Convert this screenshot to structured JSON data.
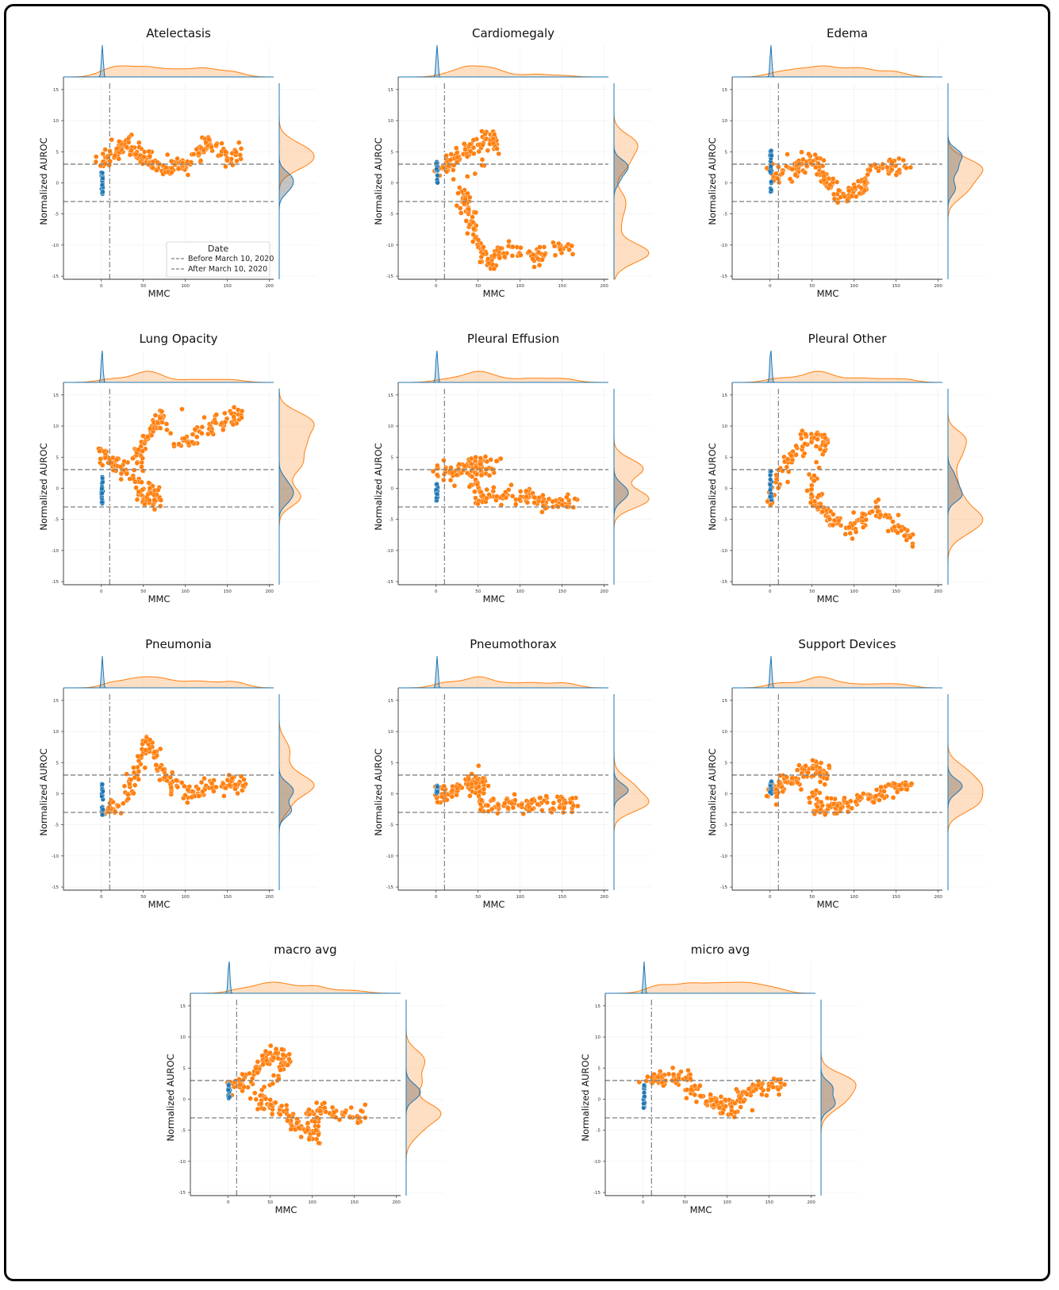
{
  "legend": {
    "title": "Date",
    "entries": [
      "Before March 10, 2020",
      "After March 10, 2020"
    ]
  },
  "colors": {
    "before": "#1f77b4",
    "after": "#ff7f0e",
    "threshold": "#808080"
  },
  "chart_data": [
    {
      "type": "scatter",
      "title": "Atelectasis",
      "xlabel": "MMC",
      "ylabel": "Normalized AUROC",
      "xlim": [
        -45,
        205
      ],
      "ylim": [
        -15.5,
        16
      ],
      "x_ticks": [
        0,
        50,
        100,
        150,
        200
      ],
      "y_ticks": [
        15,
        10,
        5,
        0,
        -5,
        -10,
        -15
      ],
      "hlines": [
        3,
        -3
      ],
      "vline": 10,
      "legend": "lower-right",
      "before": {
        "x": [
          0,
          2
        ],
        "y": [
          -1.8,
          1.8
        ]
      },
      "after": [
        [
          2,
          3.5
        ],
        [
          10,
          4
        ],
        [
          20,
          5
        ],
        [
          30,
          6.5
        ],
        [
          40,
          5
        ],
        [
          50,
          4
        ],
        [
          60,
          3
        ],
        [
          75,
          2
        ],
        [
          90,
          3
        ],
        [
          105,
          3
        ],
        [
          120,
          5
        ],
        [
          130,
          6.5
        ],
        [
          150,
          4.5
        ],
        [
          165,
          4.5
        ]
      ]
    },
    {
      "type": "scatter",
      "title": "Cardiomegaly",
      "xlabel": "MMC",
      "ylabel": "Normalized AUROC",
      "xlim": [
        -45,
        205
      ],
      "ylim": [
        -15.5,
        16
      ],
      "x_ticks": [
        0,
        50,
        100,
        150,
        200
      ],
      "y_ticks": [
        15,
        10,
        5,
        0,
        -5,
        -10,
        -15
      ],
      "hlines": [
        3,
        -3
      ],
      "vline": 10,
      "before": {
        "x": [
          0,
          2
        ],
        "y": [
          0,
          3.5
        ]
      },
      "after": [
        [
          3,
          2.5
        ],
        [
          15,
          3
        ],
        [
          25,
          4
        ],
        [
          40,
          5.5
        ],
        [
          55,
          6.5
        ],
        [
          68,
          7
        ],
        [
          70,
          6
        ],
        [
          30,
          -1
        ],
        [
          35,
          -3
        ],
        [
          40,
          -5
        ],
        [
          45,
          -8
        ],
        [
          55,
          -11
        ],
        [
          65,
          -13
        ],
        [
          75,
          -11
        ],
        [
          95,
          -11
        ],
        [
          120,
          -12
        ],
        [
          140,
          -10
        ],
        [
          160,
          -11.5
        ]
      ]
    },
    {
      "type": "scatter",
      "title": "Edema",
      "xlabel": "MMC",
      "ylabel": "Normalized AUROC",
      "xlim": [
        -45,
        205
      ],
      "ylim": [
        -15.5,
        16
      ],
      "x_ticks": [
        0,
        50,
        100,
        150,
        200
      ],
      "y_ticks": [
        15,
        10,
        5,
        0,
        -5,
        -10,
        -15
      ],
      "hlines": [
        3,
        -3
      ],
      "vline": 10,
      "before": {
        "x": [
          0,
          2
        ],
        "y": [
          -1.5,
          5.5
        ]
      },
      "after": [
        [
          5,
          1
        ],
        [
          20,
          1.5
        ],
        [
          35,
          2.5
        ],
        [
          50,
          3.5
        ],
        [
          60,
          2
        ],
        [
          70,
          0
        ],
        [
          80,
          -2
        ],
        [
          95,
          -2
        ],
        [
          110,
          -1
        ],
        [
          120,
          2
        ],
        [
          140,
          3
        ],
        [
          160,
          2
        ]
      ]
    },
    {
      "type": "scatter",
      "title": "Lung Opacity",
      "xlabel": "MMC",
      "ylabel": "Normalized AUROC",
      "xlim": [
        -45,
        205
      ],
      "ylim": [
        -15.5,
        16
      ],
      "x_ticks": [
        0,
        50,
        100,
        150,
        200
      ],
      "y_ticks": [
        15,
        10,
        5,
        0,
        -5,
        -10,
        -15
      ],
      "hlines": [
        3,
        -3
      ],
      "vline": 10,
      "before": {
        "x": [
          0,
          2
        ],
        "y": [
          -3,
          2
        ]
      },
      "after": [
        [
          0,
          6.5
        ],
        [
          5,
          4.5
        ],
        [
          20,
          3.5
        ],
        [
          35,
          2
        ],
        [
          50,
          -1.5
        ],
        [
          60,
          -2
        ],
        [
          70,
          -2
        ],
        [
          40,
          5
        ],
        [
          50,
          7
        ],
        [
          60,
          9
        ],
        [
          70,
          11.5
        ],
        [
          90,
          7
        ],
        [
          110,
          8
        ],
        [
          130,
          10
        ],
        [
          150,
          11.5
        ],
        [
          165,
          12
        ]
      ]
    },
    {
      "type": "scatter",
      "title": "Pleural Effusion",
      "xlabel": "MMC",
      "ylabel": "Normalized AUROC",
      "xlim": [
        -45,
        205
      ],
      "ylim": [
        -15.5,
        16
      ],
      "x_ticks": [
        0,
        50,
        100,
        150,
        200
      ],
      "y_ticks": [
        15,
        10,
        5,
        0,
        -5,
        -10,
        -15
      ],
      "hlines": [
        3,
        -3
      ],
      "vline": 10,
      "before": {
        "x": [
          0,
          2
        ],
        "y": [
          -2,
          1
        ]
      },
      "after": [
        [
          2,
          2.5
        ],
        [
          20,
          2.5
        ],
        [
          35,
          3.5
        ],
        [
          50,
          4
        ],
        [
          70,
          4
        ],
        [
          40,
          1
        ],
        [
          50,
          -1
        ],
        [
          70,
          -1.5
        ],
        [
          90,
          -1
        ],
        [
          110,
          -1.5
        ],
        [
          130,
          -2.5
        ],
        [
          150,
          -2.5
        ],
        [
          165,
          -2.5
        ]
      ]
    },
    {
      "type": "scatter",
      "title": "Pleural Other",
      "xlabel": "MMC",
      "ylabel": "Normalized AUROC",
      "xlim": [
        -45,
        205
      ],
      "ylim": [
        -15.5,
        16
      ],
      "x_ticks": [
        0,
        50,
        100,
        150,
        200
      ],
      "y_ticks": [
        15,
        10,
        5,
        0,
        -5,
        -10,
        -15
      ],
      "hlines": [
        3,
        -3
      ],
      "vline": 10,
      "before": {
        "x": [
          0,
          2
        ],
        "y": [
          -2,
          3
        ]
      },
      "after": [
        [
          0,
          -2
        ],
        [
          10,
          2
        ],
        [
          25,
          5
        ],
        [
          40,
          7.5
        ],
        [
          55,
          8.5
        ],
        [
          65,
          7
        ],
        [
          45,
          0
        ],
        [
          60,
          -3
        ],
        [
          75,
          -5
        ],
        [
          95,
          -7
        ],
        [
          110,
          -5
        ],
        [
          130,
          -3
        ],
        [
          150,
          -6
        ],
        [
          165,
          -8
        ]
      ]
    },
    {
      "type": "scatter",
      "title": "Pneumonia",
      "xlabel": "MMC",
      "ylabel": "Normalized AUROC",
      "xlim": [
        -45,
        205
      ],
      "ylim": [
        -15.5,
        16
      ],
      "x_ticks": [
        0,
        50,
        100,
        150,
        200
      ],
      "y_ticks": [
        15,
        10,
        5,
        0,
        -5,
        -10,
        -15
      ],
      "hlines": [
        3,
        -3
      ],
      "vline": 10,
      "before": {
        "x": [
          0,
          2
        ],
        "y": [
          -3.5,
          2
        ]
      },
      "after": [
        [
          5,
          -2
        ],
        [
          20,
          -3
        ],
        [
          35,
          1
        ],
        [
          45,
          5
        ],
        [
          55,
          9
        ],
        [
          65,
          6
        ],
        [
          75,
          3
        ],
        [
          90,
          1
        ],
        [
          110,
          0
        ],
        [
          130,
          1.5
        ],
        [
          150,
          1.5
        ],
        [
          165,
          2
        ]
      ]
    },
    {
      "type": "scatter",
      "title": "Pneumothorax",
      "xlabel": "MMC",
      "ylabel": "Normalized AUROC",
      "xlim": [
        -45,
        205
      ],
      "ylim": [
        -15.5,
        16
      ],
      "x_ticks": [
        0,
        50,
        100,
        150,
        200
      ],
      "y_ticks": [
        15,
        10,
        5,
        0,
        -5,
        -10,
        -15
      ],
      "hlines": [
        3,
        -3
      ],
      "vline": 10,
      "before": {
        "x": [
          0,
          2
        ],
        "y": [
          0,
          1.5
        ]
      },
      "after": [
        [
          0,
          -0.5
        ],
        [
          15,
          0
        ],
        [
          30,
          1
        ],
        [
          45,
          2
        ],
        [
          55,
          2.5
        ],
        [
          50,
          -1
        ],
        [
          70,
          -2
        ],
        [
          90,
          -1.5
        ],
        [
          110,
          -2
        ],
        [
          130,
          -1.5
        ],
        [
          150,
          -1.5
        ],
        [
          165,
          -1.5
        ]
      ]
    },
    {
      "type": "scatter",
      "title": "Support Devices",
      "xlabel": "MMC",
      "ylabel": "Normalized AUROC",
      "xlim": [
        -45,
        205
      ],
      "ylim": [
        -15.5,
        16
      ],
      "x_ticks": [
        0,
        50,
        100,
        150,
        200
      ],
      "y_ticks": [
        15,
        10,
        5,
        0,
        -5,
        -10,
        -15
      ],
      "hlines": [
        3,
        -3
      ],
      "vline": 10,
      "before": {
        "x": [
          0,
          2
        ],
        "y": [
          0,
          2
        ]
      },
      "after": [
        [
          0,
          0
        ],
        [
          10,
          1
        ],
        [
          25,
          2
        ],
        [
          40,
          3
        ],
        [
          55,
          4
        ],
        [
          65,
          3.5
        ],
        [
          50,
          -1
        ],
        [
          60,
          -3
        ],
        [
          75,
          -2
        ],
        [
          90,
          -1.5
        ],
        [
          110,
          -1.5
        ],
        [
          130,
          0
        ],
        [
          150,
          1
        ],
        [
          165,
          1
        ]
      ]
    },
    {
      "type": "scatter",
      "title": "macro avg",
      "xlabel": "MMC",
      "ylabel": "Normalized AUROC",
      "xlim": [
        -45,
        205
      ],
      "ylim": [
        -15.5,
        16
      ],
      "x_ticks": [
        0,
        50,
        100,
        150,
        200
      ],
      "y_ticks": [
        15,
        10,
        5,
        0,
        -5,
        -10,
        -15
      ],
      "hlines": [
        3,
        -3
      ],
      "vline": 10,
      "before": {
        "x": [
          0,
          2
        ],
        "y": [
          0,
          2.5
        ]
      },
      "after": [
        [
          3,
          2.5
        ],
        [
          15,
          2.5
        ],
        [
          30,
          4.5
        ],
        [
          45,
          6.5
        ],
        [
          60,
          7.5
        ],
        [
          70,
          6
        ],
        [
          35,
          0
        ],
        [
          50,
          -1
        ],
        [
          65,
          -2
        ],
        [
          80,
          -4
        ],
        [
          95,
          -5
        ],
        [
          110,
          -6
        ],
        [
          100,
          -2
        ],
        [
          120,
          -2
        ],
        [
          140,
          -2.5
        ],
        [
          160,
          -3
        ]
      ]
    },
    {
      "type": "scatter",
      "title": "micro avg",
      "xlabel": "MMC",
      "ylabel": "Normalized AUROC",
      "xlim": [
        -45,
        205
      ],
      "ylim": [
        -15.5,
        16
      ],
      "x_ticks": [
        0,
        50,
        100,
        150,
        200
      ],
      "y_ticks": [
        15,
        10,
        5,
        0,
        -5,
        -10,
        -15
      ],
      "hlines": [
        3,
        -3
      ],
      "vline": 10,
      "before": {
        "x": [
          0,
          2
        ],
        "y": [
          -1.5,
          2.5
        ]
      },
      "after": [
        [
          5,
          3
        ],
        [
          20,
          3.5
        ],
        [
          35,
          3.5
        ],
        [
          50,
          3
        ],
        [
          65,
          1
        ],
        [
          80,
          -0.5
        ],
        [
          95,
          -1
        ],
        [
          105,
          -1.5
        ],
        [
          115,
          0
        ],
        [
          130,
          1.5
        ],
        [
          145,
          2
        ],
        [
          165,
          2.5
        ]
      ]
    }
  ]
}
